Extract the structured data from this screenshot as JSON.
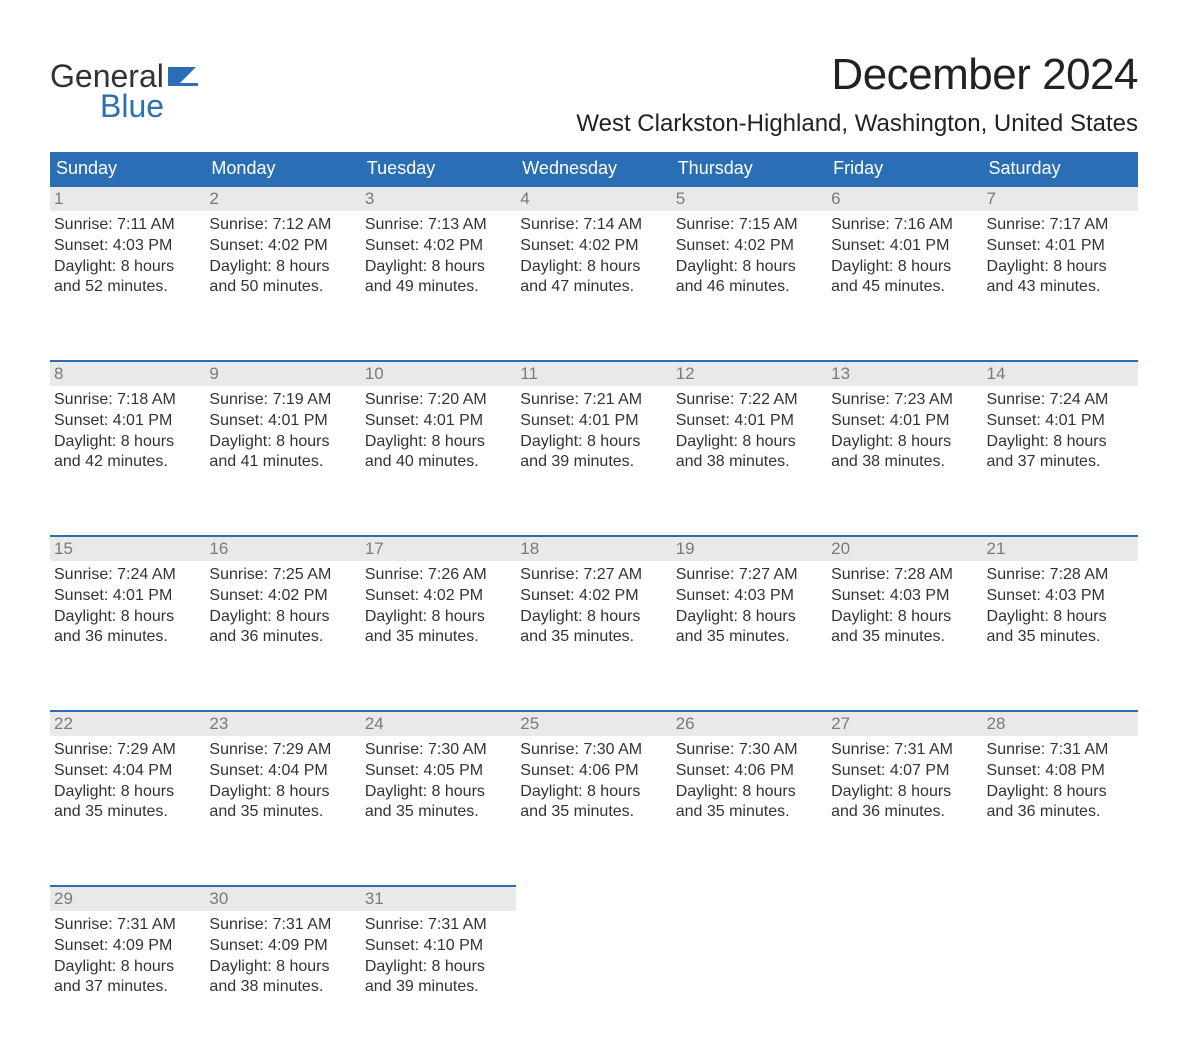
{
  "logo": {
    "word1": "General",
    "word2": "Blue",
    "flag_color": "#2a6fb5"
  },
  "title": "December 2024",
  "location": "West Clarkston-Highland, Washington, United States",
  "colors": {
    "header_bg": "#2a6fb5",
    "header_fg": "#ffffff",
    "daynum_bg": "#e9e9e9",
    "daynum_fg": "#7a7a7a",
    "text": "#333333",
    "rule": "#2a6fb5"
  },
  "day_headers": [
    "Sunday",
    "Monday",
    "Tuesday",
    "Wednesday",
    "Thursday",
    "Friday",
    "Saturday"
  ],
  "weeks": [
    [
      {
        "n": "1",
        "sr": "7:11 AM",
        "ss": "4:03 PM",
        "dl1": "Daylight: 8 hours",
        "dl2": "and 52 minutes."
      },
      {
        "n": "2",
        "sr": "7:12 AM",
        "ss": "4:02 PM",
        "dl1": "Daylight: 8 hours",
        "dl2": "and 50 minutes."
      },
      {
        "n": "3",
        "sr": "7:13 AM",
        "ss": "4:02 PM",
        "dl1": "Daylight: 8 hours",
        "dl2": "and 49 minutes."
      },
      {
        "n": "4",
        "sr": "7:14 AM",
        "ss": "4:02 PM",
        "dl1": "Daylight: 8 hours",
        "dl2": "and 47 minutes."
      },
      {
        "n": "5",
        "sr": "7:15 AM",
        "ss": "4:02 PM",
        "dl1": "Daylight: 8 hours",
        "dl2": "and 46 minutes."
      },
      {
        "n": "6",
        "sr": "7:16 AM",
        "ss": "4:01 PM",
        "dl1": "Daylight: 8 hours",
        "dl2": "and 45 minutes."
      },
      {
        "n": "7",
        "sr": "7:17 AM",
        "ss": "4:01 PM",
        "dl1": "Daylight: 8 hours",
        "dl2": "and 43 minutes."
      }
    ],
    [
      {
        "n": "8",
        "sr": "7:18 AM",
        "ss": "4:01 PM",
        "dl1": "Daylight: 8 hours",
        "dl2": "and 42 minutes."
      },
      {
        "n": "9",
        "sr": "7:19 AM",
        "ss": "4:01 PM",
        "dl1": "Daylight: 8 hours",
        "dl2": "and 41 minutes."
      },
      {
        "n": "10",
        "sr": "7:20 AM",
        "ss": "4:01 PM",
        "dl1": "Daylight: 8 hours",
        "dl2": "and 40 minutes."
      },
      {
        "n": "11",
        "sr": "7:21 AM",
        "ss": "4:01 PM",
        "dl1": "Daylight: 8 hours",
        "dl2": "and 39 minutes."
      },
      {
        "n": "12",
        "sr": "7:22 AM",
        "ss": "4:01 PM",
        "dl1": "Daylight: 8 hours",
        "dl2": "and 38 minutes."
      },
      {
        "n": "13",
        "sr": "7:23 AM",
        "ss": "4:01 PM",
        "dl1": "Daylight: 8 hours",
        "dl2": "and 38 minutes."
      },
      {
        "n": "14",
        "sr": "7:24 AM",
        "ss": "4:01 PM",
        "dl1": "Daylight: 8 hours",
        "dl2": "and 37 minutes."
      }
    ],
    [
      {
        "n": "15",
        "sr": "7:24 AM",
        "ss": "4:01 PM",
        "dl1": "Daylight: 8 hours",
        "dl2": "and 36 minutes."
      },
      {
        "n": "16",
        "sr": "7:25 AM",
        "ss": "4:02 PM",
        "dl1": "Daylight: 8 hours",
        "dl2": "and 36 minutes."
      },
      {
        "n": "17",
        "sr": "7:26 AM",
        "ss": "4:02 PM",
        "dl1": "Daylight: 8 hours",
        "dl2": "and 35 minutes."
      },
      {
        "n": "18",
        "sr": "7:27 AM",
        "ss": "4:02 PM",
        "dl1": "Daylight: 8 hours",
        "dl2": "and 35 minutes."
      },
      {
        "n": "19",
        "sr": "7:27 AM",
        "ss": "4:03 PM",
        "dl1": "Daylight: 8 hours",
        "dl2": "and 35 minutes."
      },
      {
        "n": "20",
        "sr": "7:28 AM",
        "ss": "4:03 PM",
        "dl1": "Daylight: 8 hours",
        "dl2": "and 35 minutes."
      },
      {
        "n": "21",
        "sr": "7:28 AM",
        "ss": "4:03 PM",
        "dl1": "Daylight: 8 hours",
        "dl2": "and 35 minutes."
      }
    ],
    [
      {
        "n": "22",
        "sr": "7:29 AM",
        "ss": "4:04 PM",
        "dl1": "Daylight: 8 hours",
        "dl2": "and 35 minutes."
      },
      {
        "n": "23",
        "sr": "7:29 AM",
        "ss": "4:04 PM",
        "dl1": "Daylight: 8 hours",
        "dl2": "and 35 minutes."
      },
      {
        "n": "24",
        "sr": "7:30 AM",
        "ss": "4:05 PM",
        "dl1": "Daylight: 8 hours",
        "dl2": "and 35 minutes."
      },
      {
        "n": "25",
        "sr": "7:30 AM",
        "ss": "4:06 PM",
        "dl1": "Daylight: 8 hours",
        "dl2": "and 35 minutes."
      },
      {
        "n": "26",
        "sr": "7:30 AM",
        "ss": "4:06 PM",
        "dl1": "Daylight: 8 hours",
        "dl2": "and 35 minutes."
      },
      {
        "n": "27",
        "sr": "7:31 AM",
        "ss": "4:07 PM",
        "dl1": "Daylight: 8 hours",
        "dl2": "and 36 minutes."
      },
      {
        "n": "28",
        "sr": "7:31 AM",
        "ss": "4:08 PM",
        "dl1": "Daylight: 8 hours",
        "dl2": "and 36 minutes."
      }
    ],
    [
      {
        "n": "29",
        "sr": "7:31 AM",
        "ss": "4:09 PM",
        "dl1": "Daylight: 8 hours",
        "dl2": "and 37 minutes."
      },
      {
        "n": "30",
        "sr": "7:31 AM",
        "ss": "4:09 PM",
        "dl1": "Daylight: 8 hours",
        "dl2": "and 38 minutes."
      },
      {
        "n": "31",
        "sr": "7:31 AM",
        "ss": "4:10 PM",
        "dl1": "Daylight: 8 hours",
        "dl2": "and 39 minutes."
      },
      null,
      null,
      null,
      null
    ]
  ],
  "labels": {
    "sunrise": "Sunrise: ",
    "sunset": "Sunset: "
  }
}
